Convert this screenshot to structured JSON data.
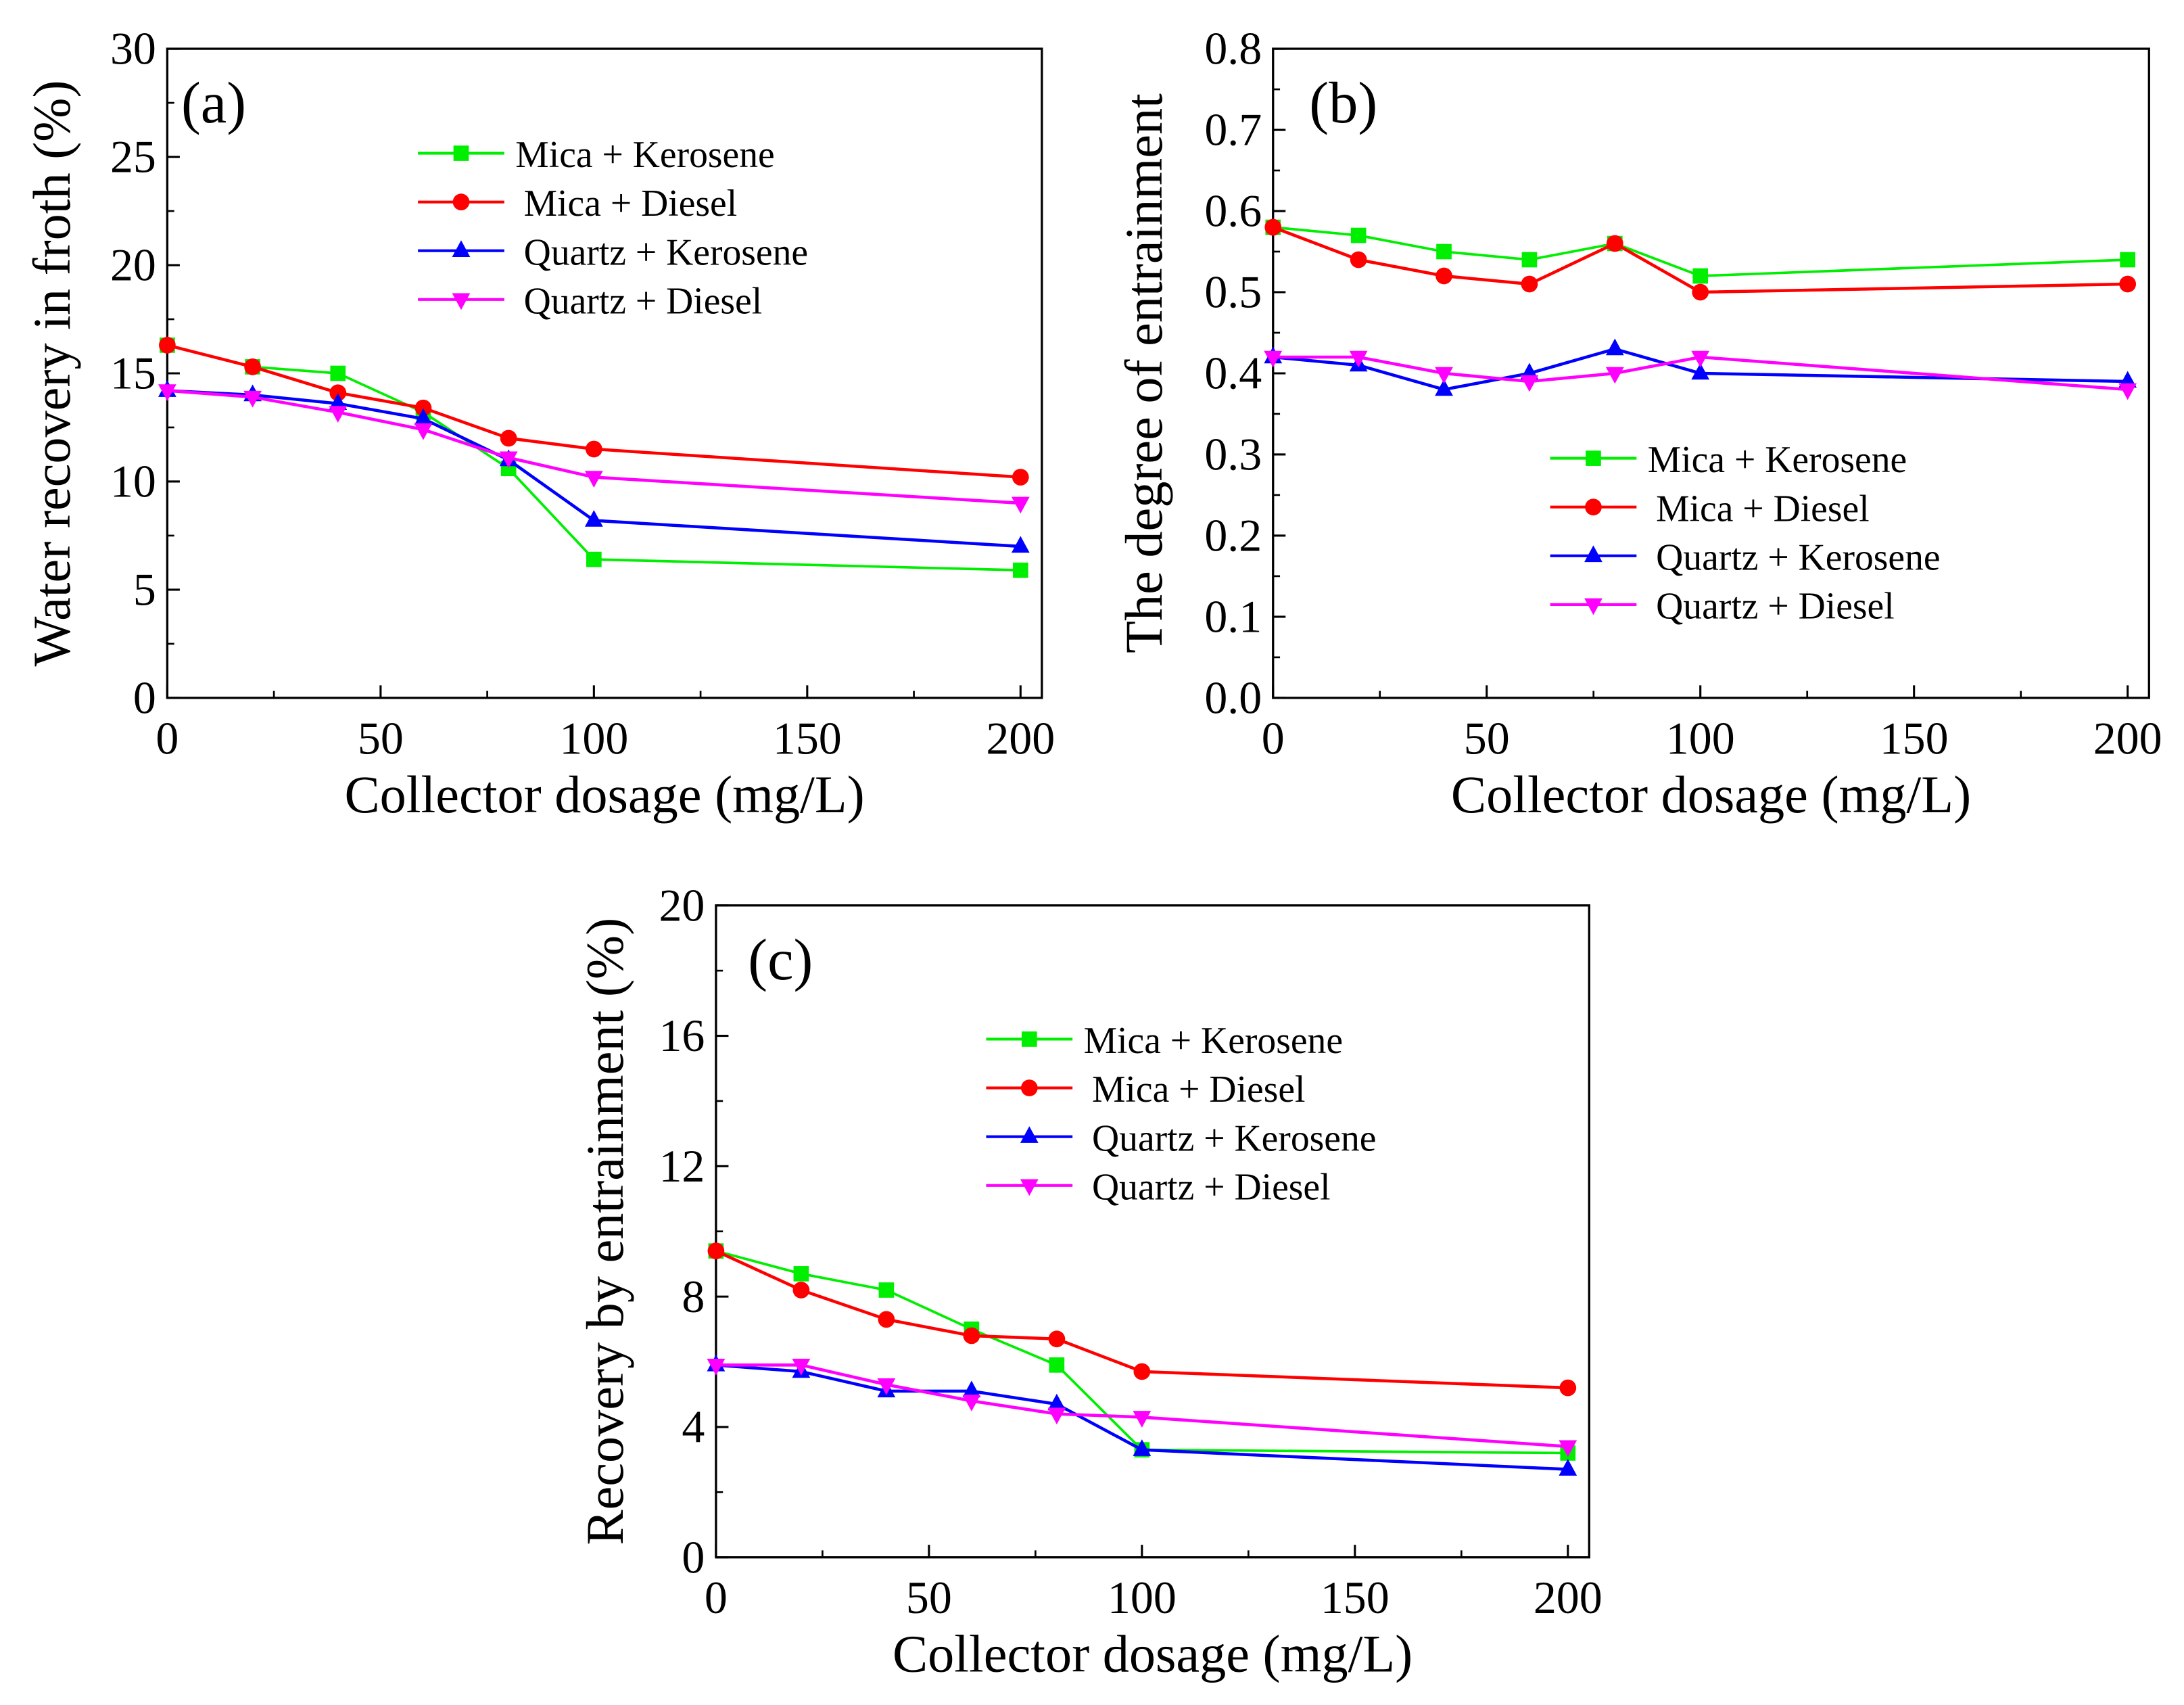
{
  "colors": {
    "Mica + Kerosene": "#00ee00",
    "Mica + Diesel": "#ff0000",
    "Quartz + Kerosene": "#0000ff",
    "Quartz + Diesel": "#ff00ff"
  },
  "chart_data": [
    {
      "type": "line",
      "panel_label": "(a)",
      "xlabel": "Collector dosage (mg/L)",
      "ylabel": "Water recovery in froth (%)",
      "xlim": [
        0,
        205
      ],
      "ylim": [
        0,
        30
      ],
      "xticks": [
        0,
        50,
        100,
        150,
        200
      ],
      "yticks": [
        0,
        5,
        10,
        15,
        20,
        25,
        30
      ],
      "legend_position": "top-center",
      "x": [
        0,
        20,
        40,
        60,
        80,
        100,
        200
      ],
      "series": [
        {
          "name": "Mica + Kerosene",
          "marker": "square",
          "values": [
            16.3,
            15.3,
            15.0,
            13.2,
            10.6,
            6.4,
            5.9
          ]
        },
        {
          "name": "Mica + Diesel",
          "marker": "circle",
          "values": [
            16.3,
            15.3,
            14.1,
            13.4,
            12.0,
            11.5,
            10.2
          ]
        },
        {
          "name": "Quartz + Kerosene",
          "marker": "triangle-up",
          "values": [
            14.2,
            14.0,
            13.6,
            12.9,
            11.0,
            8.2,
            7.0
          ]
        },
        {
          "name": "Quartz + Diesel",
          "marker": "triangle-down",
          "values": [
            14.2,
            13.9,
            13.2,
            12.4,
            11.1,
            10.2,
            9.0
          ]
        }
      ]
    },
    {
      "type": "line",
      "panel_label": "(b)",
      "xlabel": "Collector dosage (mg/L)",
      "ylabel": "The degree of entrainment",
      "xlim": [
        0,
        205
      ],
      "ylim": [
        0,
        0.8
      ],
      "xticks": [
        0,
        50,
        100,
        150,
        200
      ],
      "yticks": [
        "0.0",
        "0.1",
        "0.2",
        "0.3",
        "0.4",
        "0.5",
        "0.6",
        "0.7",
        "0.8"
      ],
      "legend_position": "center-left",
      "x": [
        0,
        20,
        40,
        60,
        80,
        100,
        200
      ],
      "series": [
        {
          "name": "Mica + Kerosene",
          "marker": "square",
          "values": [
            0.58,
            0.57,
            0.55,
            0.54,
            0.56,
            0.52,
            0.54
          ]
        },
        {
          "name": "Mica + Diesel",
          "marker": "circle",
          "values": [
            0.58,
            0.54,
            0.52,
            0.51,
            0.56,
            0.5,
            0.51
          ]
        },
        {
          "name": "Quartz + Kerosene",
          "marker": "triangle-up",
          "values": [
            0.42,
            0.41,
            0.38,
            0.4,
            0.43,
            0.4,
            0.39
          ]
        },
        {
          "name": "Quartz + Diesel",
          "marker": "triangle-down",
          "values": [
            0.42,
            0.42,
            0.4,
            0.39,
            0.4,
            0.42,
            0.38
          ]
        }
      ]
    },
    {
      "type": "line",
      "panel_label": "(c)",
      "xlabel": "Collector dosage (mg/L)",
      "ylabel": "Recovery by entrainment (%)",
      "xlim": [
        0,
        205
      ],
      "ylim": [
        0,
        20
      ],
      "xticks": [
        0,
        50,
        100,
        150,
        200
      ],
      "yticks": [
        0,
        4,
        8,
        12,
        16,
        20
      ],
      "legend_position": "top-center",
      "x": [
        0,
        20,
        40,
        60,
        80,
        100,
        200
      ],
      "series": [
        {
          "name": "Mica + Kerosene",
          "marker": "square",
          "values": [
            9.4,
            8.7,
            8.2,
            7.0,
            5.9,
            3.3,
            3.2
          ]
        },
        {
          "name": "Mica + Diesel",
          "marker": "circle",
          "values": [
            9.4,
            8.2,
            7.3,
            6.8,
            6.7,
            5.7,
            5.2
          ]
        },
        {
          "name": "Quartz + Kerosene",
          "marker": "triangle-up",
          "values": [
            5.9,
            5.7,
            5.1,
            5.1,
            4.7,
            3.3,
            2.7
          ]
        },
        {
          "name": "Quartz + Diesel",
          "marker": "triangle-down",
          "values": [
            5.9,
            5.9,
            5.3,
            4.8,
            4.4,
            4.3,
            3.4
          ]
        }
      ]
    }
  ]
}
